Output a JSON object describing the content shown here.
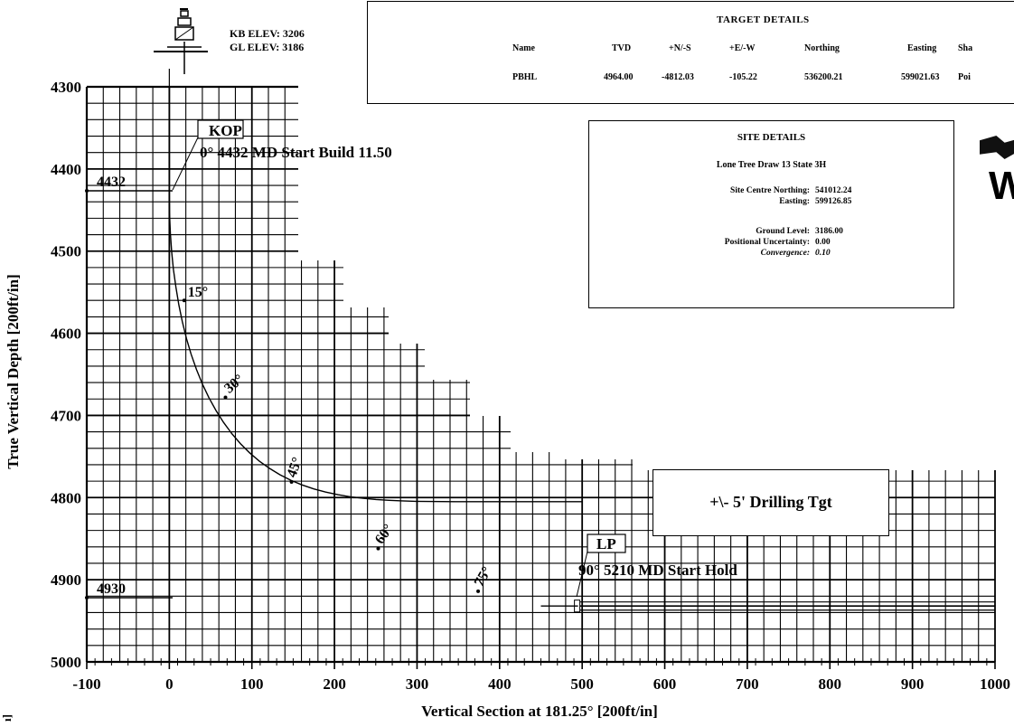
{
  "header": {
    "kb_elev": "KB ELEV: 3206",
    "gl_elev": "GL ELEV: 3186"
  },
  "target_details": {
    "title": "TARGET DETAILS",
    "columns": [
      "Name",
      "TVD",
      "+N/-S",
      "+E/-W",
      "Northing",
      "Easting",
      "Sha"
    ],
    "rows": [
      [
        "PBHL",
        "4964.00",
        "-4812.03",
        "-105.22",
        "536200.21",
        "599021.63",
        "Poi"
      ]
    ]
  },
  "site_details": {
    "title": "SITE DETAILS",
    "site_name": "Lone Tree Draw 13 State 3H",
    "northing_label": "Site Centre Northing:",
    "northing_value": "541012.24",
    "easting_label": "Easting:",
    "easting_value": "599126.85",
    "ground_label": "Ground Level:",
    "ground_value": "3186.00",
    "uncert_label": "Positional Uncertainty:",
    "uncert_value": "0.00",
    "conv_label": "Convergence:",
    "conv_value": "0.10"
  },
  "drilling_target": "+\\- 5' Drilling Tgt",
  "logo_text": "W",
  "left_edge_text": "ı]",
  "colors": {
    "ink": "#000000",
    "grid": "#000000",
    "background": "#ffffff"
  },
  "chart_data": {
    "type": "line",
    "xlabel": "Vertical Section at 181.25° [200ft/in]",
    "ylabel": "True Vertical Depth [200ft/in]",
    "xlim": [
      -100,
      1000
    ],
    "ylim": [
      4300,
      5000
    ],
    "y_inverted": true,
    "x_ticks": [
      -100,
      0,
      100,
      200,
      300,
      400,
      500,
      600,
      700,
      800,
      900,
      1000
    ],
    "y_ticks": [
      4300,
      4400,
      4500,
      4600,
      4700,
      4800,
      4900,
      5000
    ],
    "grid": true,
    "series": [
      {
        "type": "well_path",
        "x": [
          0,
          0,
          0.3,
          1.2,
          2.8,
          5,
          8,
          11.5,
          15.8,
          20.7,
          26.4,
          32.9,
          40,
          47.9,
          56.5,
          65.7,
          75.6,
          86.1,
          97.2,
          108.9,
          121.2,
          133.9,
          147.1,
          160.8,
          174.9,
          189.4,
          204.2,
          219.3,
          234.7,
          250.3,
          266.1,
          282,
          298,
          314.1,
          330.2,
          346.3,
          362.4,
          378.3,
          394.1,
          409.6,
          424.9,
          439.8,
          454.4,
          468.5,
          482.1,
          495,
          500
        ],
        "y": [
          4300,
          4432,
          4454.9,
          4477.7,
          4500.2,
          4522.4,
          4544.2,
          4565.5,
          4586.2,
          4606.3,
          4625.6,
          4644.1,
          4661.7,
          4678.3,
          4694,
          4708.5,
          4722,
          4734.3,
          4745.5,
          4755.5,
          4764.4,
          4772.2,
          4778.9,
          4784.6,
          4789.4,
          4793.3,
          4796.5,
          4799,
          4800.9,
          4802.3,
          4803.3,
          4804,
          4804.5,
          4804.8,
          4804.9,
          4805,
          4805,
          4805,
          4805,
          4805,
          4805,
          4805,
          4805,
          4805,
          4805,
          4805,
          4805
        ]
      }
    ],
    "annotations": [
      {
        "text": "4432",
        "x": -100,
        "y": 4432
      },
      {
        "text": "KOP"
      },
      {
        "text": "0° 4432 MD Start Build 11.50"
      },
      {
        "text": "15°",
        "x": 18,
        "y": 4560
      },
      {
        "text": "30°",
        "x": 68,
        "y": 4678
      },
      {
        "text": "45°",
        "x": 148,
        "y": 4781
      },
      {
        "text": "60°",
        "x": 253,
        "y": 4862
      },
      {
        "text": "75°",
        "x": 374,
        "y": 4914
      },
      {
        "text": "LP"
      },
      {
        "text": "90° 5210 MD Start Hold"
      },
      {
        "text": "4930",
        "x": -100,
        "y": 4930
      }
    ],
    "target_band": {
      "x_start": 495,
      "x_end": 1000,
      "tvd_top": 4927,
      "tvd_bottom": 4937
    }
  }
}
